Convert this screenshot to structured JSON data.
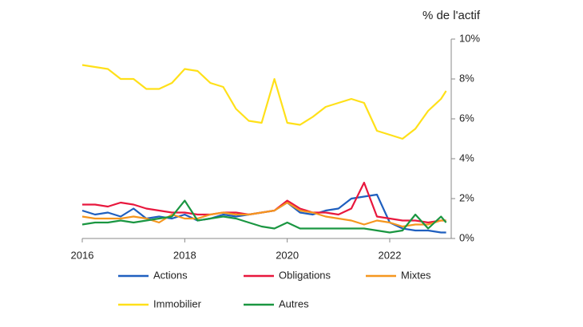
{
  "chart_data": {
    "type": "line",
    "y_axis_label": "% de l'actif",
    "x": [
      2016,
      2016.25,
      2016.5,
      2016.75,
      2017,
      2017.25,
      2017.5,
      2017.75,
      2018,
      2018.25,
      2018.5,
      2018.75,
      2019,
      2019.25,
      2019.5,
      2019.75,
      2020,
      2020.25,
      2020.5,
      2020.75,
      2021,
      2021.25,
      2021.5,
      2021.75,
      2022,
      2022.25,
      2022.5,
      2022.75,
      2023,
      2023.1
    ],
    "series": [
      {
        "name": "Actions",
        "color": "#1f5fbf",
        "values": [
          1.4,
          1.2,
          1.3,
          1.1,
          1.5,
          1.0,
          1.1,
          1.0,
          1.2,
          0.9,
          1.0,
          1.2,
          1.1,
          1.2,
          1.3,
          1.4,
          1.8,
          1.3,
          1.2,
          1.4,
          1.5,
          2.0,
          2.1,
          2.2,
          0.8,
          0.5,
          0.4,
          0.4,
          0.3,
          0.3
        ]
      },
      {
        "name": "Obligations",
        "color": "#e8173d",
        "values": [
          1.7,
          1.7,
          1.6,
          1.8,
          1.7,
          1.5,
          1.4,
          1.3,
          1.3,
          1.2,
          1.2,
          1.3,
          1.3,
          1.2,
          1.3,
          1.4,
          1.9,
          1.5,
          1.3,
          1.3,
          1.2,
          1.5,
          2.8,
          1.1,
          1.0,
          0.9,
          0.9,
          0.8,
          0.9,
          0.9
        ]
      },
      {
        "name": "Mixtes",
        "color": "#f5961e",
        "values": [
          1.1,
          1.0,
          1.0,
          1.0,
          1.1,
          1.0,
          0.8,
          1.2,
          1.0,
          1.0,
          1.2,
          1.3,
          1.2,
          1.2,
          1.3,
          1.4,
          1.8,
          1.4,
          1.3,
          1.1,
          1.0,
          0.9,
          0.7,
          0.9,
          0.8,
          0.6,
          0.7,
          0.7,
          0.9,
          0.9
        ]
      },
      {
        "name": "Immobilier",
        "color": "#ffe019",
        "values": [
          8.7,
          8.6,
          8.5,
          8.0,
          8.0,
          7.5,
          7.5,
          7.8,
          8.5,
          8.4,
          7.8,
          7.6,
          6.5,
          5.9,
          5.8,
          8.0,
          5.8,
          5.7,
          6.1,
          6.6,
          6.8,
          7.0,
          6.8,
          5.4,
          5.2,
          5.0,
          5.5,
          6.4,
          7.0,
          7.4
        ]
      },
      {
        "name": "Autres",
        "color": "#1a9641",
        "values": [
          0.7,
          0.8,
          0.8,
          0.9,
          0.8,
          0.9,
          1.0,
          1.1,
          1.9,
          0.9,
          1.0,
          1.1,
          1.0,
          0.8,
          0.6,
          0.5,
          0.8,
          0.5,
          0.5,
          0.5,
          0.5,
          0.5,
          0.5,
          0.4,
          0.3,
          0.4,
          1.2,
          0.5,
          1.1,
          0.8
        ]
      }
    ],
    "xlim": [
      2016,
      2023.2
    ],
    "xticks": [
      2016,
      2018,
      2020,
      2022
    ],
    "ylim": [
      0,
      10
    ],
    "yticks": [
      {
        "value": 0,
        "label": "0%"
      },
      {
        "value": 2,
        "label": "2%"
      },
      {
        "value": 4,
        "label": "4%"
      },
      {
        "value": 6,
        "label": "6%"
      },
      {
        "value": 8,
        "label": "8%"
      },
      {
        "value": 10,
        "label": "10%"
      }
    ]
  }
}
